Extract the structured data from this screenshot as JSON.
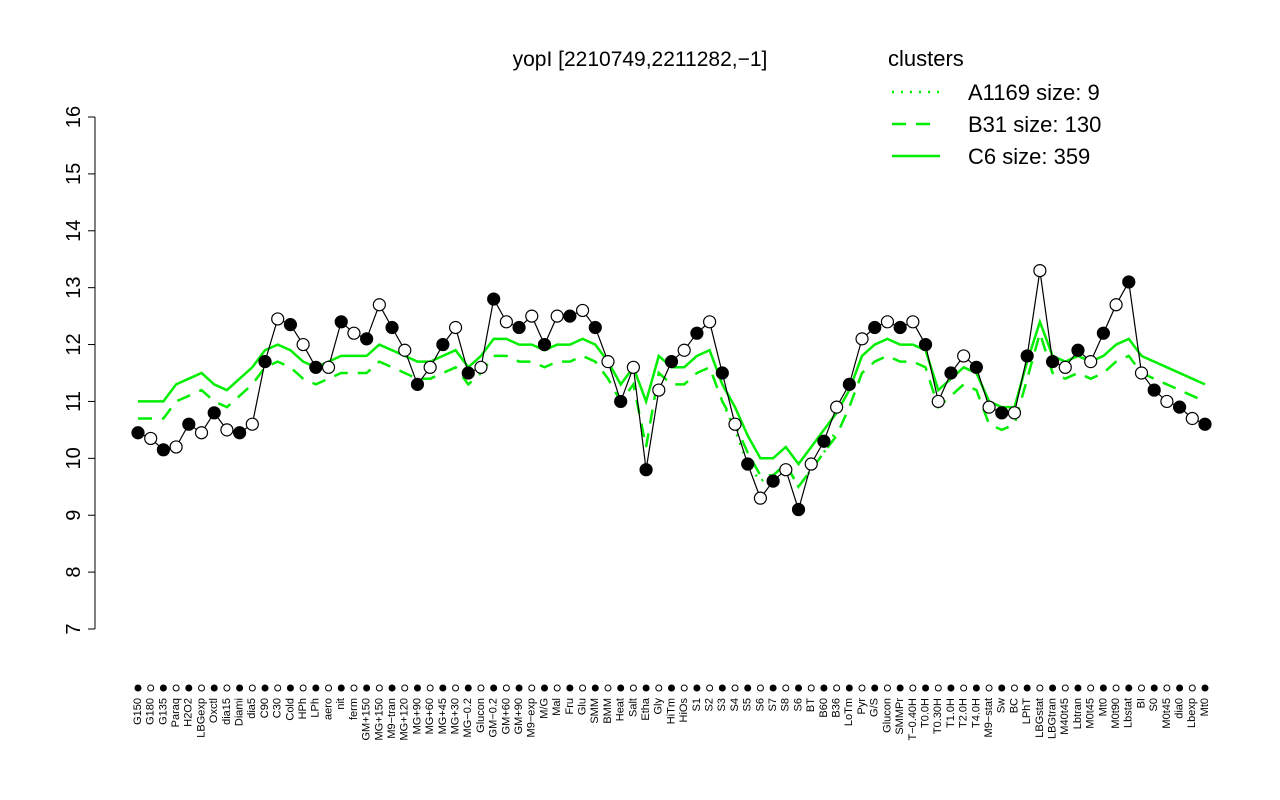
{
  "chart_data": {
    "type": "line",
    "title": "yopI [2210749,2211282,−1]",
    "legend_title": "clusters",
    "legend_color": "#00ee00",
    "line_color": "#000000",
    "ylim": [
      7,
      16
    ],
    "yticks": [
      7,
      8,
      9,
      10,
      11,
      12,
      13,
      14,
      15,
      16
    ],
    "categories": [
      "G150",
      "G180",
      "G135",
      "Paraq",
      "H2O2",
      "LBGexp",
      "Oxctl",
      "dia15",
      "Diami",
      "dia5",
      "C90",
      "C30",
      "Cold",
      "HPh",
      "LPh",
      "aero",
      "nit",
      "ferm",
      "GM+150",
      "MG+150",
      "M9−tran",
      "MG+120",
      "MG+90",
      "MG+60",
      "MG+45",
      "MG+30",
      "MG−0.2",
      "Glucon",
      "GM−0.2",
      "GM+60",
      "GM+90",
      "M9−exp",
      "M/G",
      "Mal",
      "Fru",
      "Glu",
      "SMM",
      "BMM",
      "Heat",
      "Salt",
      "Etha",
      "Gly",
      "HiTm",
      "HiOs",
      "S1",
      "S2",
      "S3",
      "S4",
      "S5",
      "S6",
      "S7",
      "S8",
      "S6",
      "BT",
      "B60",
      "B36",
      "LoTm",
      "Pyr",
      "G/S",
      "Glucon",
      "SMMPr",
      "T−0.40H",
      "T0.0H",
      "T0.30H",
      "T1.0H",
      "T2.0H",
      "T4.0H",
      "M9−stat",
      "Sw",
      "BC",
      "LPhT",
      "LBGstat",
      "LBGtran",
      "M40t45",
      "Lbtran",
      "M0t45",
      "Mt0",
      "M0t90",
      "Lbstat",
      "BI",
      "S0",
      "M0t45",
      "dia0",
      "Lbexp",
      "Mt0"
    ],
    "values": [
      10.45,
      10.35,
      10.15,
      10.2,
      10.6,
      10.45,
      10.8,
      10.5,
      10.45,
      10.6,
      11.7,
      12.45,
      12.35,
      12.0,
      11.6,
      11.6,
      12.4,
      12.2,
      12.1,
      12.7,
      12.3,
      11.9,
      11.3,
      11.6,
      12.0,
      12.3,
      11.5,
      11.6,
      12.8,
      12.4,
      12.3,
      12.5,
      12.0,
      12.5,
      12.5,
      12.6,
      12.3,
      11.7,
      11.0,
      11.6,
      9.8,
      11.2,
      11.7,
      11.9,
      12.2,
      12.4,
      11.5,
      10.6,
      9.9,
      9.3,
      9.6,
      9.8,
      9.1,
      9.9,
      10.3,
      10.9,
      11.3,
      12.1,
      12.3,
      12.4,
      12.3,
      12.4,
      12.0,
      11.0,
      11.5,
      11.8,
      11.6,
      10.9,
      10.8,
      10.8,
      11.8,
      13.3,
      11.7,
      11.6,
      11.9,
      11.7,
      12.2,
      12.7,
      13.1,
      11.5,
      11.2,
      11.0,
      10.9,
      10.7,
      10.6
    ],
    "series": [
      {
        "name": "A1169 size: 9",
        "color": "#00ee00",
        "dash": "dotted",
        "values": [
          null,
          null,
          null,
          null,
          null,
          null,
          null,
          null,
          null,
          null,
          null,
          null,
          null,
          null,
          null,
          null,
          null,
          null,
          null,
          null,
          null,
          null,
          null,
          null,
          null,
          null,
          null,
          null,
          null,
          null,
          null,
          null,
          null,
          null,
          null,
          null,
          null,
          null,
          null,
          null,
          null,
          null,
          null,
          null,
          null,
          null,
          11.0,
          10.5,
          9.9,
          9.6,
          9.7,
          9.9,
          9.5,
          9.8,
          10.1,
          10.5,
          null,
          null,
          null,
          null,
          null,
          null,
          null,
          null,
          null,
          null,
          null,
          null,
          null,
          null,
          null,
          null,
          null,
          null,
          null,
          null,
          null,
          null,
          null,
          null,
          null,
          null,
          null,
          null,
          null
        ]
      },
      {
        "name": "B31 size: 130",
        "color": "#00ee00",
        "dash": "dashed",
        "values": [
          10.7,
          10.7,
          10.7,
          11.0,
          11.1,
          11.2,
          11.0,
          10.9,
          11.1,
          11.3,
          11.6,
          11.7,
          11.6,
          11.4,
          11.3,
          11.4,
          11.5,
          11.5,
          11.5,
          11.7,
          11.6,
          11.5,
          11.4,
          11.4,
          11.5,
          11.6,
          11.3,
          11.5,
          11.8,
          11.8,
          11.7,
          11.7,
          11.6,
          11.7,
          11.7,
          11.8,
          11.7,
          11.4,
          11.0,
          11.3,
          10.2,
          11.5,
          11.3,
          11.3,
          11.5,
          11.6,
          11.0,
          10.6,
          10.1,
          9.7,
          9.7,
          9.9,
          9.5,
          9.8,
          10.1,
          10.4,
          10.9,
          11.5,
          11.7,
          11.8,
          11.7,
          11.7,
          11.6,
          10.9,
          11.1,
          11.3,
          11.2,
          10.6,
          10.5,
          10.6,
          11.4,
          12.2,
          11.5,
          11.4,
          11.5,
          11.4,
          11.5,
          11.7,
          11.8,
          11.5,
          11.4,
          11.3,
          11.2,
          11.1,
          11.0
        ]
      },
      {
        "name": "C6 size: 359",
        "color": "#00ee00",
        "dash": "solid",
        "values": [
          11.0,
          11.0,
          11.0,
          11.3,
          11.4,
          11.5,
          11.3,
          11.2,
          11.4,
          11.6,
          11.9,
          12.0,
          11.9,
          11.7,
          11.6,
          11.7,
          11.8,
          11.8,
          11.8,
          12.0,
          11.9,
          11.8,
          11.7,
          11.7,
          11.8,
          11.9,
          11.6,
          11.8,
          12.1,
          12.1,
          12.0,
          12.0,
          11.9,
          12.0,
          12.0,
          12.1,
          12.0,
          11.7,
          11.3,
          11.6,
          11.0,
          11.8,
          11.6,
          11.6,
          11.8,
          11.9,
          11.3,
          10.9,
          10.4,
          10.0,
          10.0,
          10.2,
          9.9,
          10.2,
          10.5,
          10.8,
          11.2,
          11.8,
          12.0,
          12.1,
          12.0,
          12.0,
          11.9,
          11.2,
          11.4,
          11.6,
          11.5,
          11.0,
          10.9,
          10.9,
          11.7,
          12.4,
          11.8,
          11.7,
          11.8,
          11.7,
          11.8,
          12.0,
          12.1,
          11.8,
          11.7,
          11.6,
          11.5,
          11.4,
          11.3
        ]
      }
    ]
  }
}
